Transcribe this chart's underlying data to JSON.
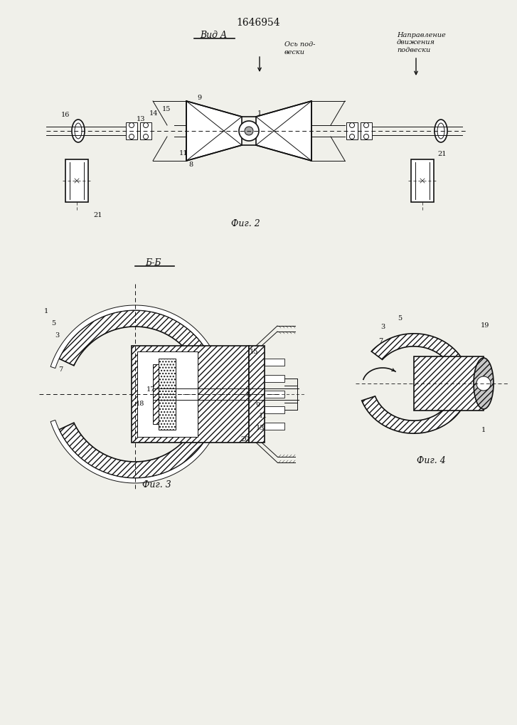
{
  "patent_number": "1646954",
  "bg_color": "#f0f0ea",
  "line_color": "#111111",
  "fig2_label": "Фиг. 2",
  "fig3_label": "Фиг. 3",
  "fig4_label": "Фиг. 4",
  "view_a_label": "Вид A",
  "section_bb": "Б-Б",
  "axis_text": "Ось под-\nвески",
  "direction_text": "Направление\nдвижения\nподвески"
}
